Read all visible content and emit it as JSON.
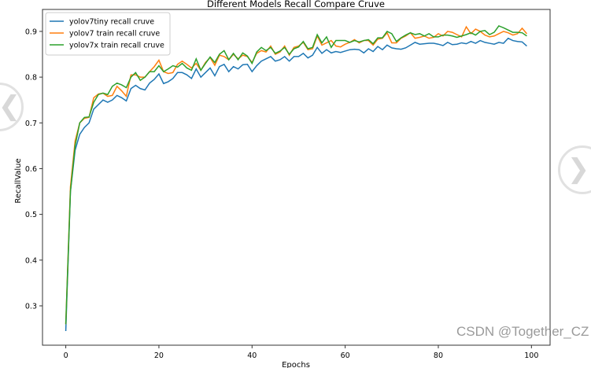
{
  "chart_data": {
    "type": "line",
    "title": "Different Models Recall Compare Cruve",
    "xlabel": "Epochs",
    "ylabel": "RecallValue",
    "xlim": [
      -5,
      104
    ],
    "ylim": [
      0.214,
      0.948
    ],
    "xticks": [
      0,
      20,
      40,
      60,
      80,
      100
    ],
    "yticks": [
      0.3,
      0.4,
      0.5,
      0.6,
      0.7,
      0.8,
      0.9
    ],
    "grid": false,
    "legend": "top-left",
    "x_start": 0,
    "series": [
      {
        "name": "yolov7tiny recall cruve",
        "color": "#1f77b4",
        "values": [
          0.245,
          0.55,
          0.64,
          0.675,
          0.69,
          0.7,
          0.73,
          0.74,
          0.75,
          0.745,
          0.75,
          0.76,
          0.755,
          0.748,
          0.775,
          0.782,
          0.775,
          0.772,
          0.787,
          0.795,
          0.807,
          0.786,
          0.79,
          0.797,
          0.81,
          0.81,
          0.805,
          0.797,
          0.818,
          0.8,
          0.81,
          0.82,
          0.803,
          0.823,
          0.828,
          0.812,
          0.823,
          0.818,
          0.827,
          0.828,
          0.812,
          0.825,
          0.835,
          0.84,
          0.845,
          0.835,
          0.838,
          0.845,
          0.835,
          0.845,
          0.845,
          0.852,
          0.842,
          0.848,
          0.865,
          0.852,
          0.86,
          0.853,
          0.856,
          0.854,
          0.857,
          0.86,
          0.861,
          0.86,
          0.853,
          0.862,
          0.856,
          0.867,
          0.86,
          0.87,
          0.864,
          0.862,
          0.861,
          0.864,
          0.87,
          0.876,
          0.872,
          0.873,
          0.874,
          0.874,
          0.872,
          0.869,
          0.876,
          0.871,
          0.872,
          0.875,
          0.873,
          0.878,
          0.874,
          0.88,
          0.876,
          0.874,
          0.872,
          0.876,
          0.874,
          0.885,
          0.88,
          0.878,
          0.877,
          0.868
        ]
      },
      {
        "name": "yolov7 train recall cruve",
        "color": "#ff7f0e",
        "values": [
          0.26,
          0.56,
          0.66,
          0.7,
          0.71,
          0.712,
          0.755,
          0.763,
          0.765,
          0.758,
          0.76,
          0.78,
          0.77,
          0.758,
          0.805,
          0.805,
          0.8,
          0.8,
          0.812,
          0.823,
          0.837,
          0.812,
          0.808,
          0.81,
          0.828,
          0.835,
          0.828,
          0.82,
          0.83,
          0.815,
          0.832,
          0.843,
          0.826,
          0.848,
          0.845,
          0.838,
          0.85,
          0.84,
          0.848,
          0.845,
          0.832,
          0.852,
          0.858,
          0.855,
          0.868,
          0.85,
          0.855,
          0.868,
          0.848,
          0.865,
          0.868,
          0.876,
          0.86,
          0.862,
          0.89,
          0.87,
          0.875,
          0.88,
          0.868,
          0.866,
          0.872,
          0.876,
          0.882,
          0.875,
          0.88,
          0.88,
          0.87,
          0.883,
          0.885,
          0.897,
          0.875,
          0.875,
          0.885,
          0.89,
          0.897,
          0.885,
          0.887,
          0.89,
          0.885,
          0.887,
          0.895,
          0.89,
          0.9,
          0.898,
          0.893,
          0.888,
          0.91,
          0.895,
          0.905,
          0.9,
          0.892,
          0.888,
          0.89,
          0.895,
          0.9,
          0.897,
          0.892,
          0.895,
          0.907,
          0.895
        ]
      },
      {
        "name": "yolov7x train recall cruve",
        "color": "#2ca02c",
        "values": [
          0.26,
          0.55,
          0.65,
          0.7,
          0.712,
          0.713,
          0.745,
          0.762,
          0.765,
          0.762,
          0.78,
          0.787,
          0.783,
          0.777,
          0.8,
          0.81,
          0.793,
          0.8,
          0.812,
          0.812,
          0.825,
          0.812,
          0.818,
          0.825,
          0.822,
          0.83,
          0.82,
          0.815,
          0.84,
          0.815,
          0.83,
          0.844,
          0.832,
          0.85,
          0.858,
          0.838,
          0.852,
          0.838,
          0.853,
          0.846,
          0.83,
          0.855,
          0.865,
          0.858,
          0.865,
          0.852,
          0.857,
          0.865,
          0.85,
          0.862,
          0.866,
          0.878,
          0.862,
          0.865,
          0.893,
          0.875,
          0.888,
          0.865,
          0.88,
          0.88,
          0.88,
          0.876,
          0.88,
          0.877,
          0.88,
          0.882,
          0.873,
          0.886,
          0.886,
          0.9,
          0.895,
          0.878,
          0.886,
          0.892,
          0.897,
          0.893,
          0.895,
          0.89,
          0.895,
          0.888,
          0.888,
          0.892,
          0.892,
          0.89,
          0.887,
          0.89,
          0.893,
          0.897,
          0.892,
          0.9,
          0.902,
          0.893,
          0.898,
          0.912,
          0.908,
          0.903,
          0.898,
          0.898,
          0.897,
          0.89
        ]
      }
    ]
  },
  "watermark": "CSDN @Together_CZ",
  "nav": {
    "prev_icon": "chevron-left-icon",
    "next_icon": "chevron-right-icon"
  }
}
